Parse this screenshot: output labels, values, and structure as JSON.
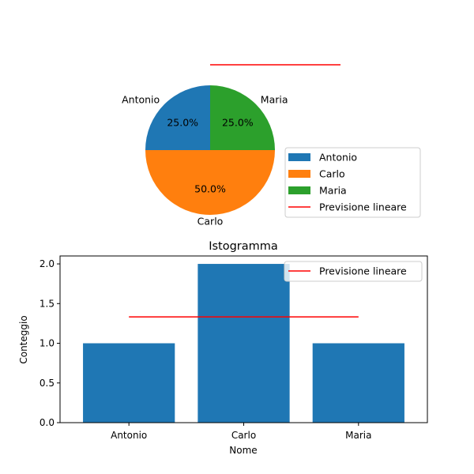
{
  "chart_data": [
    {
      "type": "pie",
      "labels": [
        "Antonio",
        "Carlo",
        "Maria"
      ],
      "values": [
        1,
        2,
        1
      ],
      "percent_labels": [
        "25.0%",
        "50.0%",
        "25.0%"
      ],
      "colors": [
        "#1f77b4",
        "#ff7f0e",
        "#2ca02c"
      ],
      "legend": {
        "placement": "lower-right",
        "entries": [
          "Antonio",
          "Carlo",
          "Maria",
          "Previsione lineare"
        ]
      },
      "line_series": {
        "name": "Previsione lineare",
        "color": "#ff0000"
      }
    },
    {
      "type": "bar",
      "title": "Istogramma",
      "xlabel": "Nome",
      "ylabel": "Conteggio",
      "categories": [
        "Antonio",
        "Carlo",
        "Maria"
      ],
      "values": [
        1,
        2,
        1
      ],
      "bar_color": "#1f77b4",
      "ylim": [
        0,
        2.1
      ],
      "yticks": [
        "0.0",
        "0.5",
        "1.0",
        "1.5",
        "2.0"
      ],
      "ytick_values": [
        0,
        0.5,
        1,
        1.5,
        2
      ],
      "series": [
        {
          "name": "Previsione lineare",
          "type": "line",
          "color": "#ff0000",
          "values": [
            1.333,
            1.333,
            1.333
          ]
        }
      ],
      "legend": {
        "placement": "top-right",
        "entries": [
          "Previsione lineare"
        ]
      }
    }
  ]
}
